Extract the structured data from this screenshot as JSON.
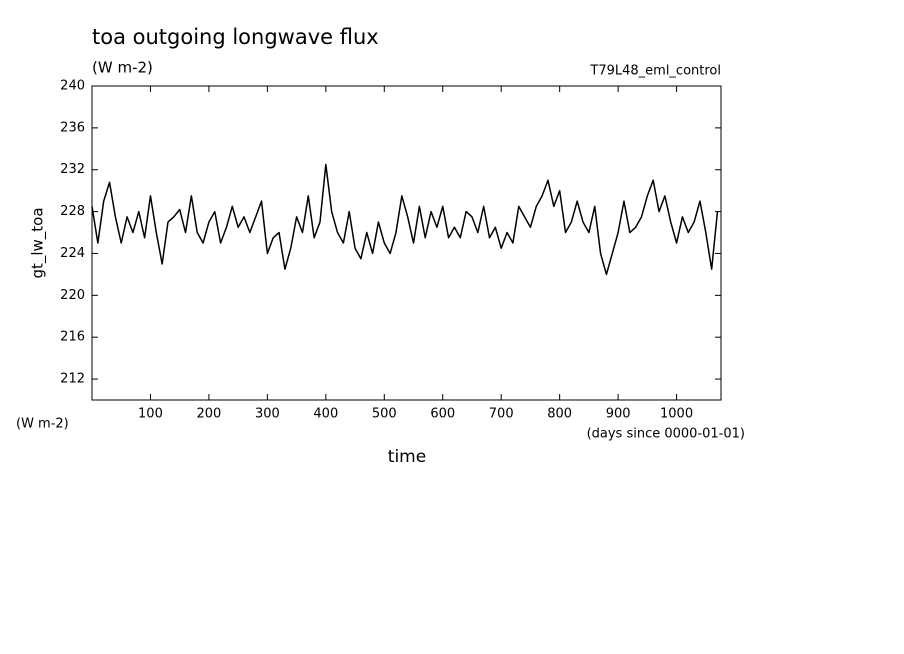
{
  "chart_data": {
    "type": "line",
    "title": "toa outgoing longwave flux",
    "subtitle": "(W m-2)",
    "run_label": "T79L48_eml_control",
    "y_label": "gt_lw_toa",
    "y_units": "(W m-2)",
    "x_label": "time",
    "x_units": "(days since 0000-01-01)",
    "xlim": [
      0,
      1076
    ],
    "ylim": [
      210,
      240
    ],
    "xticks": [
      100,
      200,
      300,
      400,
      500,
      600,
      700,
      800,
      900,
      1000
    ],
    "yticks": [
      212,
      216,
      220,
      224,
      228,
      232,
      236,
      240
    ],
    "grid": false,
    "series": [
      {
        "color": "#000000",
        "x": [
          0,
          10,
          20,
          30,
          40,
          50,
          60,
          70,
          80,
          90,
          100,
          110,
          120,
          130,
          140,
          150,
          160,
          170,
          180,
          190,
          200,
          210,
          220,
          230,
          240,
          250,
          260,
          270,
          280,
          290,
          300,
          310,
          320,
          330,
          340,
          350,
          360,
          370,
          380,
          390,
          400,
          410,
          420,
          430,
          440,
          450,
          460,
          470,
          480,
          490,
          500,
          510,
          520,
          530,
          540,
          550,
          560,
          570,
          580,
          590,
          600,
          610,
          620,
          630,
          640,
          650,
          660,
          670,
          680,
          690,
          700,
          710,
          720,
          730,
          740,
          750,
          760,
          770,
          780,
          790,
          800,
          810,
          820,
          830,
          840,
          850,
          860,
          870,
          880,
          890,
          900,
          910,
          920,
          930,
          940,
          950,
          960,
          970,
          980,
          990,
          1000,
          1010,
          1020,
          1030,
          1040,
          1050,
          1060,
          1070
        ],
        "values": [
          228.5,
          225,
          229,
          230.8,
          227.5,
          225,
          227.5,
          226,
          228,
          225.5,
          229.5,
          226,
          223,
          227,
          227.5,
          228.2,
          226,
          229.5,
          226,
          225,
          227,
          228,
          225,
          226.5,
          228.5,
          226.5,
          227.5,
          226,
          227.5,
          229,
          224,
          225.5,
          226,
          222.5,
          224.5,
          227.5,
          226,
          229.5,
          225.5,
          227,
          232.5,
          228,
          226,
          225,
          228,
          224.5,
          223.5,
          226,
          224,
          227,
          225,
          224,
          226,
          229.5,
          227.5,
          225,
          228.5,
          225.5,
          228,
          226.5,
          228.5,
          225.5,
          226.5,
          225.5,
          228,
          227.5,
          226,
          228.5,
          225.5,
          226.5,
          224.5,
          226,
          225,
          228.5,
          227.5,
          226.5,
          228.5,
          229.5,
          231,
          228.5,
          230,
          226,
          227,
          229,
          227,
          226,
          228.5,
          224,
          222,
          224,
          226,
          229,
          226,
          226.5,
          227.5,
          229.5,
          231,
          228,
          229.5,
          227,
          225,
          227.5,
          226,
          227,
          229,
          226,
          222.5,
          228
        ]
      }
    ]
  }
}
